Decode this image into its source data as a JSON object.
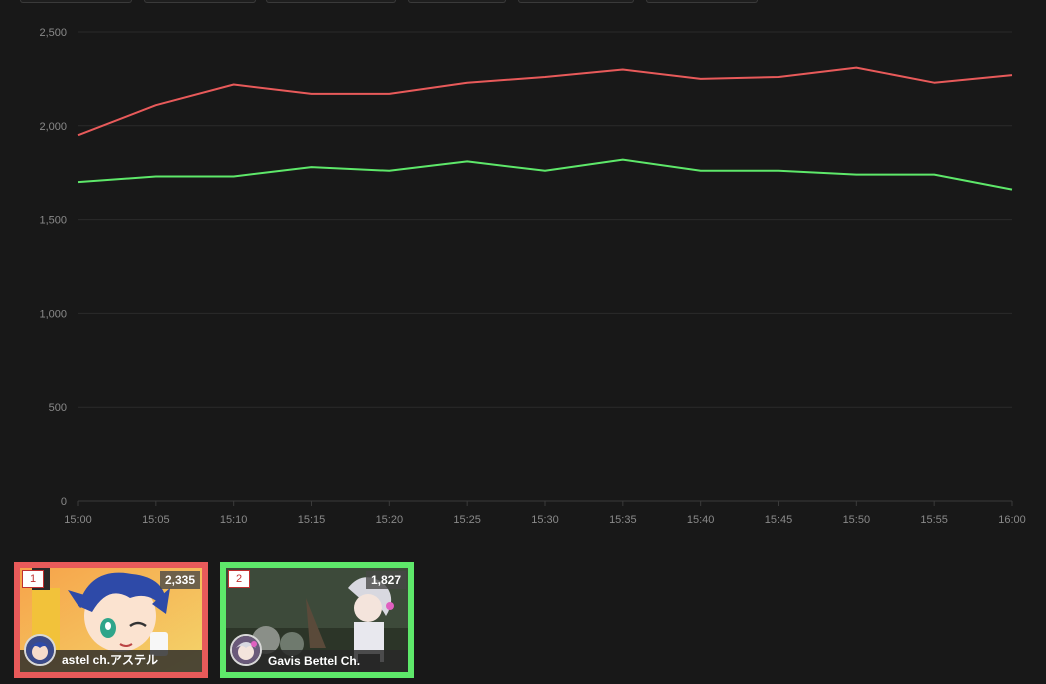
{
  "chart_data": {
    "type": "line",
    "x_ticks": [
      "15:00",
      "15:05",
      "15:10",
      "15:15",
      "15:20",
      "15:25",
      "15:30",
      "15:35",
      "15:40",
      "15:45",
      "15:50",
      "15:55",
      "16:00"
    ],
    "y_ticks": [
      "0",
      "500",
      "1,000",
      "1,500",
      "2,000",
      "2,500"
    ],
    "ylim": [
      0,
      2500
    ],
    "grid": true,
    "series": [
      {
        "color": "#e85a5a",
        "x": [
          "15:00",
          "15:05",
          "15:10",
          "15:15",
          "15:20",
          "15:25",
          "15:30",
          "15:35",
          "15:40",
          "15:45",
          "15:50",
          "15:55",
          "16:00"
        ],
        "values": [
          1950,
          2110,
          2220,
          2170,
          2170,
          2230,
          2260,
          2300,
          2250,
          2260,
          2310,
          2230,
          2270
        ]
      },
      {
        "color": "#5ee86a",
        "x": [
          "15:00",
          "15:05",
          "15:10",
          "15:15",
          "15:20",
          "15:25",
          "15:30",
          "15:35",
          "15:40",
          "15:45",
          "15:50",
          "15:55",
          "16:00"
        ],
        "values": [
          1700,
          1730,
          1730,
          1780,
          1760,
          1810,
          1760,
          1820,
          1760,
          1760,
          1740,
          1740,
          1660
        ]
      }
    ]
  },
  "streams": [
    {
      "rank": "1",
      "count": "2,335",
      "name": "astel ch.アステル",
      "color": "#e85a5a"
    },
    {
      "rank": "2",
      "count": "1,827",
      "name": "Gavis Bettel Ch.",
      "color": "#5ee86a"
    }
  ]
}
